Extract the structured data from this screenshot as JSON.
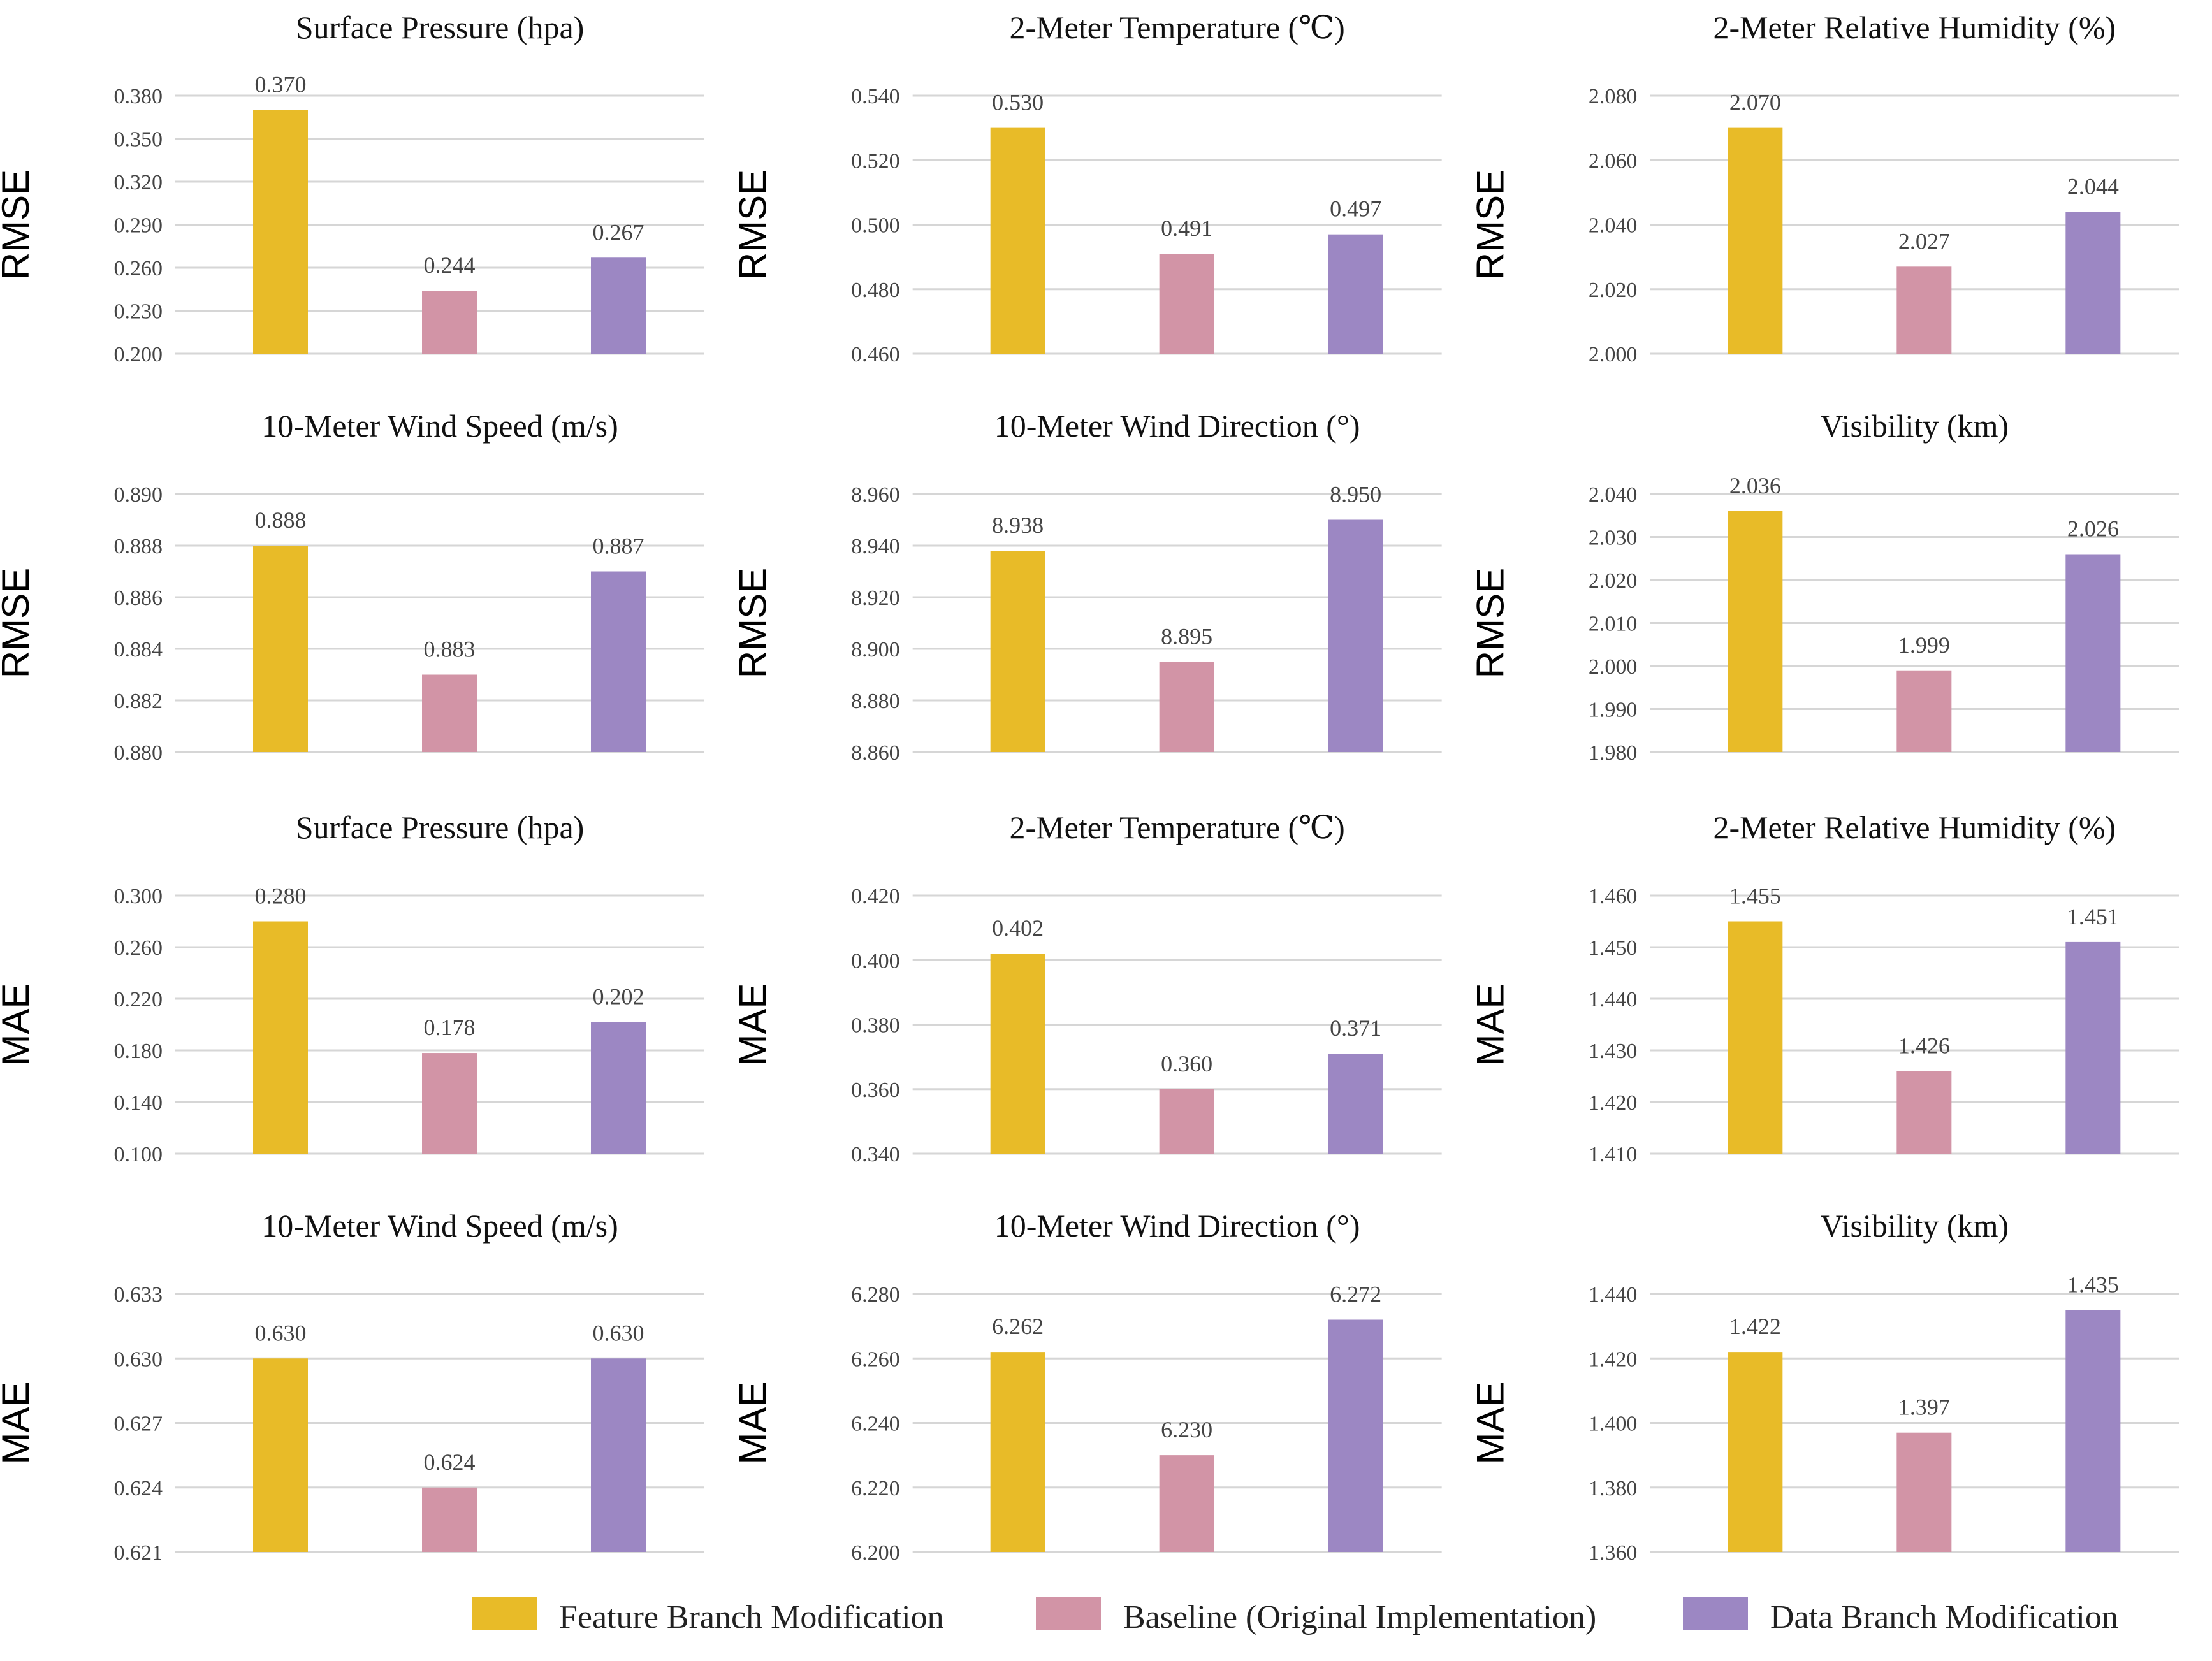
{
  "chart_data": [
    {
      "type": "bar",
      "title": "Surface Pressure (hpa)",
      "ylabel": "RMSE",
      "ylim": [
        0.2,
        0.38
      ],
      "yticks": [
        "0.200",
        "0.230",
        "0.260",
        "0.290",
        "0.320",
        "0.350",
        "0.380"
      ],
      "values": [
        0.37,
        0.244,
        0.267
      ],
      "labels": [
        "0.370",
        "0.244",
        "0.267"
      ]
    },
    {
      "type": "bar",
      "title": "2-Meter Temperature (℃)",
      "ylabel": "RMSE",
      "ylim": [
        0.46,
        0.54
      ],
      "yticks": [
        "0.460",
        "0.480",
        "0.500",
        "0.520",
        "0.540"
      ],
      "values": [
        0.53,
        0.491,
        0.497
      ],
      "labels": [
        "0.530",
        "0.491",
        "0.497"
      ]
    },
    {
      "type": "bar",
      "title": "2-Meter Relative Humidity (%)",
      "ylabel": "RMSE",
      "ylim": [
        2.0,
        2.08
      ],
      "yticks": [
        "2.000",
        "2.020",
        "2.040",
        "2.060",
        "2.080"
      ],
      "values": [
        2.07,
        2.027,
        2.044
      ],
      "labels": [
        "2.070",
        "2.027",
        "2.044"
      ]
    },
    {
      "type": "bar",
      "title": "10-Meter Wind Speed (m/s)",
      "ylabel": "RMSE",
      "ylim": [
        0.88,
        0.89
      ],
      "yticks": [
        "0.880",
        "0.882",
        "0.884",
        "0.886",
        "0.888",
        "0.890"
      ],
      "values": [
        0.888,
        0.883,
        0.887
      ],
      "labels": [
        "0.888",
        "0.883",
        "0.887"
      ]
    },
    {
      "type": "bar",
      "title": "10-Meter Wind Direction (°)",
      "ylabel": "RMSE",
      "ylim": [
        8.86,
        8.96
      ],
      "yticks": [
        "8.860",
        "8.880",
        "8.900",
        "8.920",
        "8.940",
        "8.960"
      ],
      "values": [
        8.938,
        8.895,
        8.95
      ],
      "labels": [
        "8.938",
        "8.895",
        "8.950"
      ]
    },
    {
      "type": "bar",
      "title": "Visibility (km)",
      "ylabel": "RMSE",
      "ylim": [
        1.98,
        2.04
      ],
      "yticks": [
        "1.980",
        "1.990",
        "2.000",
        "2.010",
        "2.020",
        "2.030",
        "2.040"
      ],
      "values": [
        2.036,
        1.999,
        2.026
      ],
      "labels": [
        "2.036",
        "1.999",
        "2.026"
      ]
    },
    {
      "type": "bar",
      "title": "Surface Pressure (hpa)",
      "ylabel": "MAE",
      "ylim": [
        0.1,
        0.3
      ],
      "yticks": [
        "0.100",
        "0.140",
        "0.180",
        "0.220",
        "0.260",
        "0.300"
      ],
      "values": [
        0.28,
        0.178,
        0.202
      ],
      "labels": [
        "0.280",
        "0.178",
        "0.202"
      ]
    },
    {
      "type": "bar",
      "title": "2-Meter Temperature (℃)",
      "ylabel": "MAE",
      "ylim": [
        0.34,
        0.42
      ],
      "yticks": [
        "0.340",
        "0.360",
        "0.380",
        "0.400",
        "0.420"
      ],
      "values": [
        0.402,
        0.36,
        0.371
      ],
      "labels": [
        "0.402",
        "0.360",
        "0.371"
      ]
    },
    {
      "type": "bar",
      "title": "2-Meter Relative Humidity (%)",
      "ylabel": "MAE",
      "ylim": [
        1.41,
        1.46
      ],
      "yticks": [
        "1.410",
        "1.420",
        "1.430",
        "1.440",
        "1.450",
        "1.460"
      ],
      "values": [
        1.455,
        1.426,
        1.451
      ],
      "labels": [
        "1.455",
        "1.426",
        "1.451"
      ]
    },
    {
      "type": "bar",
      "title": "10-Meter Wind Speed (m/s)",
      "ylabel": "MAE",
      "ylim": [
        0.621,
        0.633
      ],
      "yticks": [
        "0.621",
        "0.624",
        "0.627",
        "0.630",
        "0.633"
      ],
      "values": [
        0.63,
        0.624,
        0.63
      ],
      "labels": [
        "0.630",
        "0.624",
        "0.630"
      ]
    },
    {
      "type": "bar",
      "title": "10-Meter Wind Direction (°)",
      "ylabel": "MAE",
      "ylim": [
        6.2,
        6.28
      ],
      "yticks": [
        "6.200",
        "6.220",
        "6.240",
        "6.260",
        "6.280"
      ],
      "values": [
        6.262,
        6.23,
        6.272
      ],
      "labels": [
        "6.262",
        "6.230",
        "6.272"
      ]
    },
    {
      "type": "bar",
      "title": "Visibility (km)",
      "ylabel": "MAE",
      "ylim": [
        1.36,
        1.44
      ],
      "yticks": [
        "1.360",
        "1.380",
        "1.400",
        "1.420",
        "1.440"
      ],
      "values": [
        1.422,
        1.397,
        1.435
      ],
      "labels": [
        "1.422",
        "1.397",
        "1.435"
      ]
    }
  ],
  "series": [
    {
      "name": "Feature Branch Modification",
      "color": "#e8bb28"
    },
    {
      "name": "Baseline (Original Implementation)",
      "color": "#d294a6"
    },
    {
      "name": "Data Branch Modification",
      "color": "#9c87c3"
    }
  ],
  "legend_position": "bottom-right"
}
